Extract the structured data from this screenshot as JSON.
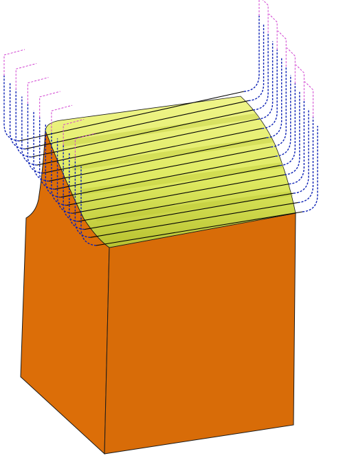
{
  "colors": {
    "background": "#ffffff",
    "stock_front": "#dc6e08",
    "stock_side": "#d86c08",
    "stock_edge": "#1a1a1a",
    "surface_light": "#f0f58a",
    "surface_mid": "#dfea62",
    "surface_dark": "#b8c230",
    "toolpath_cut": "#000000",
    "toolpath_link": "#0a1fb4",
    "toolpath_rapid": "#d040d0"
  },
  "scene": {
    "stock_shape": "block-with-curved-shoulder",
    "machined_surface": "convex-yellow-green-surface",
    "toolpath_passes": 14,
    "toolpath_style": "parallel-finishing"
  }
}
